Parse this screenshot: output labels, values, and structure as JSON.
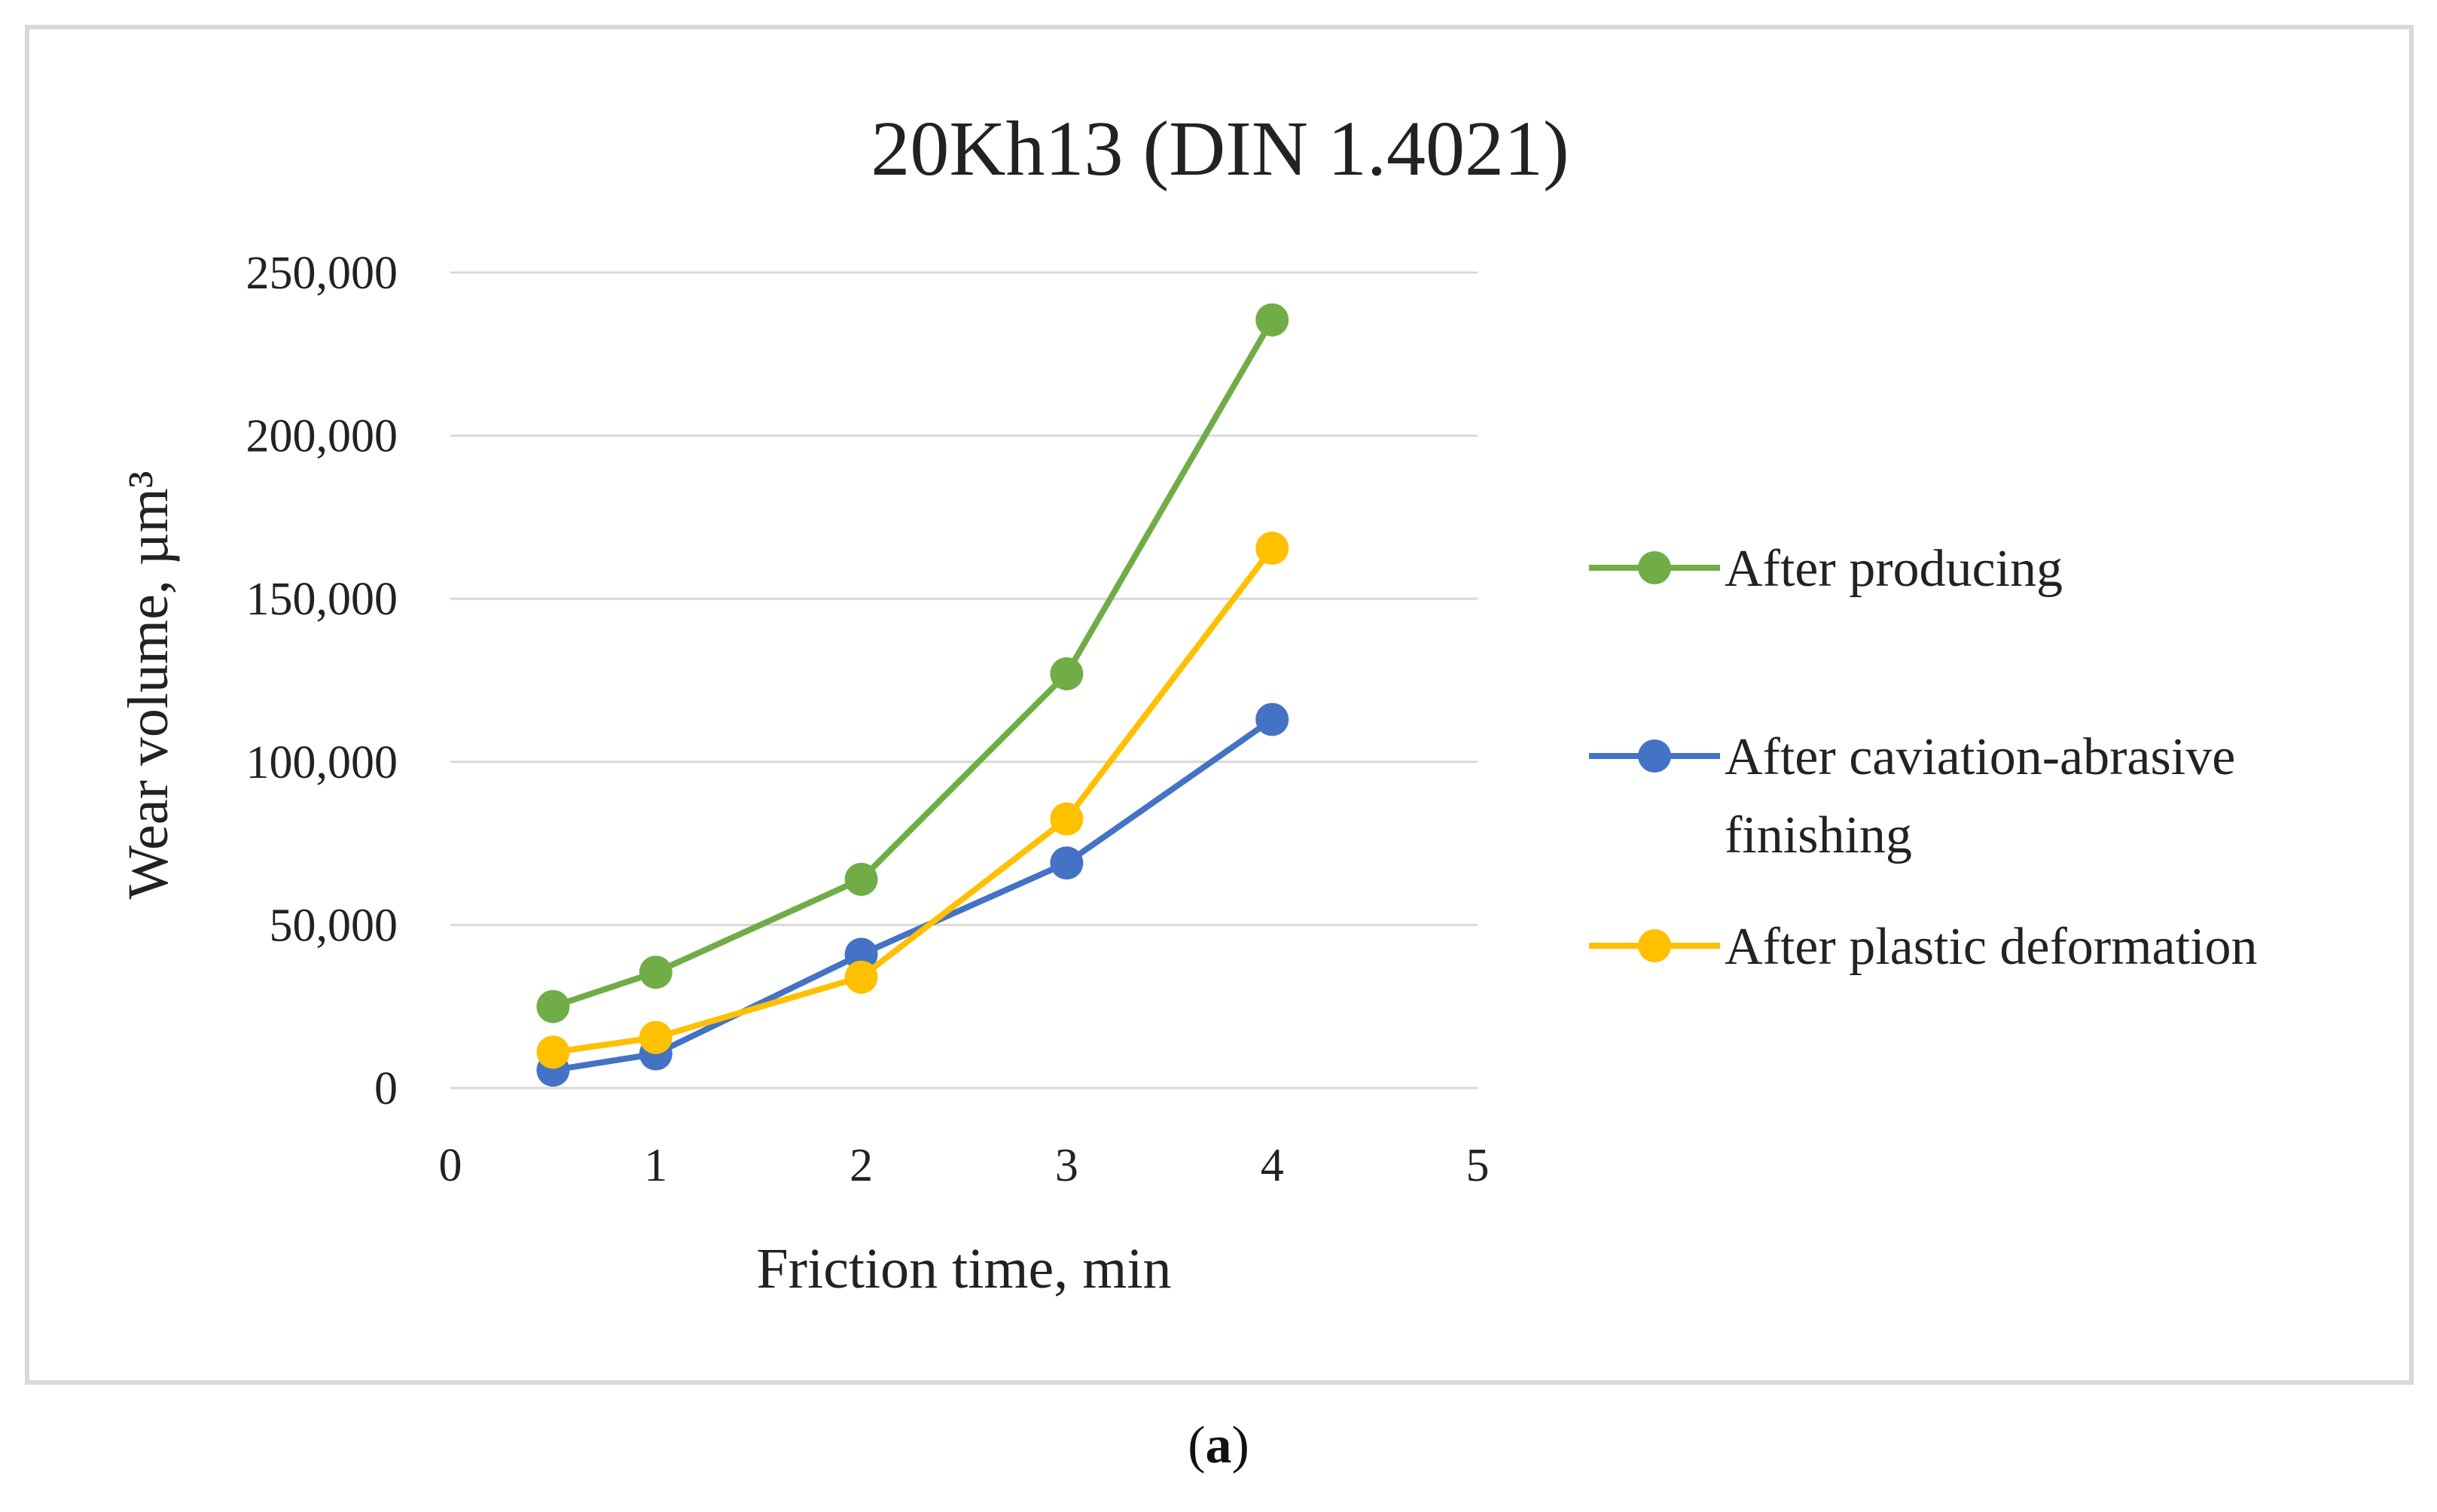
{
  "chart_data": {
    "type": "line",
    "title": "20Kh13 (DIN 1.4021)",
    "xlabel": "Friction time, min",
    "ylabel": "Wear volume, µm³",
    "xlim": [
      0,
      5
    ],
    "ylim": [
      0,
      250000
    ],
    "x_ticks": [
      "0",
      "1",
      "2",
      "3",
      "4",
      "5"
    ],
    "y_ticks": [
      "0",
      "50,000",
      "100,000",
      "150,000",
      "200,000",
      "250,000"
    ],
    "grid": "horizontal",
    "legend_position": "right",
    "series": [
      {
        "name": "After producing",
        "color": "#70ad47",
        "x": [
          0.5,
          1,
          2,
          3,
          4
        ],
        "values": [
          25000,
          35500,
          64000,
          127000,
          235500
        ]
      },
      {
        "name": "After caviation-abrasive finishing",
        "legend_lines": [
          "After caviation-abrasive",
          "finishing"
        ],
        "color": "#4472c4",
        "x": [
          0.5,
          1,
          2,
          3,
          4
        ],
        "values": [
          5500,
          10500,
          41000,
          69000,
          113000
        ]
      },
      {
        "name": "After plastic deformation",
        "color": "#ffc000",
        "x": [
          0.5,
          1,
          2,
          3,
          4
        ],
        "values": [
          11000,
          15500,
          34000,
          82500,
          165500
        ]
      }
    ]
  },
  "caption": {
    "open": "(",
    "letter": "a",
    "close": ")"
  },
  "colors": {
    "grid": "#d9d9d9",
    "frame": "#d9d9d9",
    "text": "#222222"
  }
}
